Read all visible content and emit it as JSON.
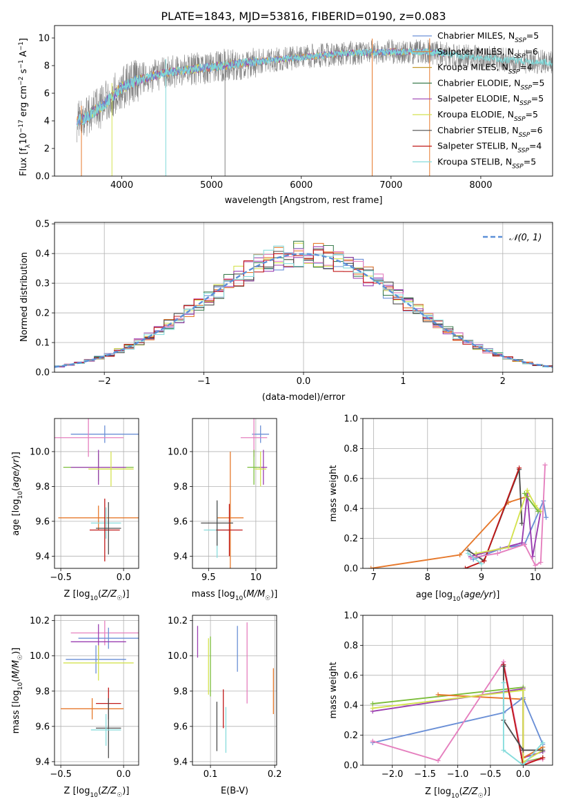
{
  "title": "PLATE=1843, MJD=53816, FIBERID=0190, z=0.083",
  "colors": {
    "Chabrier MILES": "#6a8fd6",
    "Salpeter MILES": "#e6782b",
    "Kroupa MILES": "#c49a2c",
    "Chabrier ELODIE": "#3c7d4f",
    "Salpeter ELODIE": "#9a3db0",
    "Kroupa ELODIE": "#d4e24f",
    "Chabrier STELIB": "#4d4d4d",
    "Salpeter STELIB": "#c01818",
    "Kroupa STELIB": "#86dcdc",
    "pink": "#e57fbe",
    "green": "#7bbd3a",
    "gaussian": "#5b8fd8",
    "spectrum_gray": "#808080",
    "spectrum_cyan": "#7fd9d9"
  },
  "chart_data": [
    {
      "type": "line",
      "id": "spectrum",
      "title": "PLATE=1843, MJD=53816, FIBERID=0190, z=0.083",
      "xlabel": "wavelength [Angstrom, rest frame]",
      "ylabel": "Flux [fλ10⁻¹⁷ erg cm⁻² s⁻¹ A⁻¹]",
      "xlim": [
        3250,
        8800
      ],
      "ylim": [
        0,
        10.9
      ],
      "xticks": [
        4000,
        5000,
        6000,
        7000,
        8000
      ],
      "yticks": [
        0,
        2,
        4,
        6,
        8,
        10
      ],
      "grid": false,
      "legend_position": "top-right",
      "legend": [
        "Chabrier MILES, N_SSP=5",
        "Salpeter MILES, N_SSP=6",
        "Kroupa MILES, N_SSP=4",
        "Chabrier ELODIE, N_SSP=5",
        "Salpeter ELODIE, N_SSP=5",
        "Kroupa ELODIE, N_SSP=5",
        "Chabrier STELIB, N_SSP=6",
        "Salpeter STELIB, N_SSP=4",
        "Kroupa STELIB, N_SSP=5"
      ],
      "continuum": {
        "x": [
          3500,
          3600,
          3800,
          4000,
          4200,
          4500,
          5000,
          5500,
          6000,
          6500,
          7000,
          7400,
          7800,
          8300,
          8800
        ],
        "y": [
          4.0,
          4.2,
          5.2,
          6.4,
          7.0,
          7.5,
          7.9,
          8.3,
          8.6,
          8.9,
          9.0,
          9.0,
          8.7,
          8.4,
          8.2
        ]
      },
      "drops": [
        {
          "x": 3550,
          "y": 0.0
        },
        {
          "x": 3890,
          "y": 0.0
        },
        {
          "x": 4490,
          "y": 0.0
        },
        {
          "x": 5150,
          "y": 0.0
        },
        {
          "x": 6790,
          "y": 0.0
        },
        {
          "x": 7430,
          "y": 0.0
        }
      ]
    },
    {
      "type": "line",
      "id": "residual-hist",
      "xlabel": "(data-model)/error",
      "ylabel": "Normed distribution",
      "xlim": [
        -2.5,
        2.5
      ],
      "ylim": [
        0,
        0.505
      ],
      "xticks": [
        -2,
        -1,
        0,
        1,
        2
      ],
      "yticks": [
        0.0,
        0.1,
        0.2,
        0.3,
        0.4,
        0.5
      ],
      "grid": true,
      "legend_position": "top-right",
      "legend": [
        "𝒩(0, 1)"
      ],
      "bin_width": 0.1
    },
    {
      "type": "scatter",
      "id": "age-vs-Z",
      "xlabel": "Z [log10(Z/Z☉)]",
      "ylabel": "age  [log10(age/yr)]",
      "xlim": [
        -0.55,
        0.12
      ],
      "ylim": [
        9.33,
        10.19
      ],
      "xticks": [
        -0.5,
        0.0
      ],
      "yticks": [
        9.4,
        9.6,
        9.8,
        10.0
      ],
      "grid": true,
      "points": [
        {
          "series": "Chabrier MILES",
          "x": -0.15,
          "y": 10.1,
          "xerr": 0.27,
          "yerr": 0.05
        },
        {
          "series": "pink",
          "x": -0.28,
          "y": 10.08,
          "xerr": 0.28,
          "yerr": 0.11
        },
        {
          "series": "green",
          "x": -0.2,
          "y": 9.91,
          "xerr": 0.28,
          "yerr": 0.08
        },
        {
          "series": "Salpeter ELODIE",
          "x": -0.2,
          "y": 9.91,
          "xerr": 0.22,
          "yerr": 0.1
        },
        {
          "series": "Kroupa ELODIE",
          "x": -0.1,
          "y": 9.9,
          "xerr": 0.18,
          "yerr": 0.1
        },
        {
          "series": "Salpeter MILES",
          "x": -0.2,
          "y": 9.62,
          "xerr": 0.32,
          "yerr": 0.07
        },
        {
          "series": "Kroupa STELIB",
          "x": -0.14,
          "y": 9.59,
          "xerr": 0.12,
          "yerr": 0.09
        },
        {
          "series": "Salpeter STELIB",
          "x": -0.15,
          "y": 9.55,
          "xerr": 0.12,
          "yerr": 0.18
        },
        {
          "series": "Chabrier STELIB",
          "x": -0.12,
          "y": 9.56,
          "xerr": 0.1,
          "yerr": 0.15
        }
      ]
    },
    {
      "type": "scatter",
      "id": "age-vs-mass",
      "xlabel": "mass [log10(M/M☉)]",
      "ylabel": "",
      "xlim": [
        9.33,
        10.22
      ],
      "ylim": [
        9.33,
        10.19
      ],
      "xticks": [
        9.5,
        10.0
      ],
      "yticks": [
        9.4,
        9.6,
        9.8,
        10.0
      ],
      "grid": true,
      "points": [
        {
          "series": "Chabrier MILES",
          "x": 10.05,
          "y": 10.1,
          "xerr": 0.09,
          "yerr": 0.05
        },
        {
          "series": "pink",
          "x": 9.98,
          "y": 10.08,
          "xerr": 0.14,
          "yerr": 0.11
        },
        {
          "series": "green",
          "x": 9.98,
          "y": 9.91,
          "xerr": 0.07,
          "yerr": 0.1
        },
        {
          "series": "Salpeter ELODIE",
          "x": 10.08,
          "y": 9.91,
          "xerr": 0.04,
          "yerr": 0.1
        },
        {
          "series": "Kroupa ELODIE",
          "x": 10.05,
          "y": 9.9,
          "xerr": 0.06,
          "yerr": 0.1
        },
        {
          "series": "Salpeter MILES",
          "x": 9.73,
          "y": 9.62,
          "xerr": 0.14,
          "yerr": 0.38
        },
        {
          "series": "Kroupa STELIB",
          "x": 9.59,
          "y": 9.55,
          "xerr": 0.14,
          "yerr": 0.16
        },
        {
          "series": "Salpeter STELIB",
          "x": 9.72,
          "y": 9.55,
          "xerr": 0.14,
          "yerr": 0.15
        },
        {
          "series": "Chabrier STELIB",
          "x": 9.59,
          "y": 9.59,
          "xerr": 0.17,
          "yerr": 0.13
        }
      ]
    },
    {
      "type": "line",
      "id": "weight-vs-age",
      "xlabel": "age  [log10(age/yr)]",
      "ylabel": "mass weight",
      "xlim": [
        6.8,
        10.32
      ],
      "ylim": [
        0,
        1.0
      ],
      "xticks": [
        7,
        8,
        9,
        10
      ],
      "yticks": [
        0.0,
        0.2,
        0.4,
        0.6,
        0.8,
        1.0
      ],
      "grid": true,
      "series": [
        {
          "name": "Salpeter MILES",
          "x": [
            6.95,
            8.6,
            9.5,
            9.85
          ],
          "y": [
            0.0,
            0.09,
            0.44,
            0.48
          ]
        },
        {
          "name": "Chabrier MILES",
          "x": [
            8.85,
            9.35,
            9.8,
            10.15,
            10.2
          ],
          "y": [
            0.06,
            0.13,
            0.16,
            0.45,
            0.34
          ]
        },
        {
          "name": "Chabrier STELIB",
          "x": [
            8.75,
            9.05,
            9.7,
            9.75
          ],
          "y": [
            0.12,
            0.05,
            0.66,
            0.3
          ]
        },
        {
          "name": "Salpeter STELIB",
          "x": [
            8.7,
            9.05,
            9.7
          ],
          "y": [
            0.0,
            0.05,
            0.67
          ]
        },
        {
          "name": "Salpeter ELODIE",
          "x": [
            8.8,
            9.75,
            9.85,
            9.95,
            10.1
          ],
          "y": [
            0.08,
            0.17,
            0.5,
            0.08,
            0.38
          ]
        },
        {
          "name": "Kroupa ELODIE",
          "x": [
            8.9,
            9.5,
            9.85,
            10.0,
            10.1
          ],
          "y": [
            0.1,
            0.14,
            0.52,
            0.42,
            0.38
          ]
        },
        {
          "name": "pink",
          "x": [
            8.8,
            9.3,
            9.8,
            10.0,
            10.1,
            10.18
          ],
          "y": [
            0.07,
            0.1,
            0.16,
            0.02,
            0.04,
            0.69
          ]
        },
        {
          "name": "Kroupa STELIB",
          "x": [
            8.75,
            9.0
          ],
          "y": [
            0.1,
            0.03
          ]
        },
        {
          "name": "green",
          "x": [
            9.8,
            10.05
          ],
          "y": [
            0.5,
            0.38
          ]
        }
      ]
    },
    {
      "type": "scatter",
      "id": "mass-vs-Z",
      "xlabel": "Z [log10(Z/Z☉)]",
      "ylabel": "mass [log10(M/M☉)]",
      "xlim": [
        -0.55,
        0.12
      ],
      "ylim": [
        9.38,
        10.23
      ],
      "xticks": [
        -0.5,
        0.0
      ],
      "yticks": [
        9.4,
        9.6,
        9.8,
        10.0,
        10.2
      ],
      "grid": true,
      "points": [
        {
          "series": "pink",
          "x": -0.15,
          "y": 10.13,
          "xerr": 0.27,
          "yerr": 0.07
        },
        {
          "series": "Chabrier MILES",
          "x": -0.12,
          "y": 10.1,
          "xerr": 0.24,
          "yerr": 0.06
        },
        {
          "series": "Salpeter ELODIE",
          "x": -0.2,
          "y": 10.08,
          "xerr": 0.22,
          "yerr": 0.1
        },
        {
          "series": "Chabrier MILES",
          "x": -0.22,
          "y": 9.98,
          "xerr": 0.24,
          "yerr": 0.08
        },
        {
          "series": "Kroupa ELODIE",
          "x": -0.2,
          "y": 9.96,
          "xerr": 0.28,
          "yerr": 0.1
        },
        {
          "series": "Salpeter STELIB",
          "x": -0.12,
          "y": 9.73,
          "xerr": 0.1,
          "yerr": 0.09
        },
        {
          "series": "Salpeter MILES",
          "x": -0.25,
          "y": 9.7,
          "xerr": 0.25,
          "yerr": 0.06
        },
        {
          "series": "Chabrier STELIB",
          "x": -0.12,
          "y": 9.59,
          "xerr": 0.1,
          "yerr": 0.17
        },
        {
          "series": "Kroupa STELIB",
          "x": -0.14,
          "y": 9.58,
          "xerr": 0.12,
          "yerr": 0.09
        }
      ]
    },
    {
      "type": "scatter",
      "id": "mass-vs-ebv",
      "xlabel": "E(B-V)",
      "ylabel": "",
      "xlim": [
        0.072,
        0.203
      ],
      "ylim": [
        9.38,
        10.23
      ],
      "xticks": [
        0.1,
        0.2
      ],
      "yticks": [
        9.4,
        9.6,
        9.8,
        10.0,
        10.2
      ],
      "grid": true,
      "points": [
        {
          "series": "Salpeter ELODIE",
          "x": 0.08,
          "y": 10.08,
          "yerr": 0.09
        },
        {
          "series": "Kroupa ELODIE",
          "x": 0.097,
          "y": 9.94,
          "yerr": 0.16
        },
        {
          "series": "green",
          "x": 0.1,
          "y": 9.94,
          "yerr": 0.17
        },
        {
          "series": "Chabrier STELIB",
          "x": 0.11,
          "y": 9.6,
          "yerr": 0.14
        },
        {
          "series": "Salpeter STELIB",
          "x": 0.12,
          "y": 9.7,
          "yerr": 0.11
        },
        {
          "series": "Kroupa STELIB",
          "x": 0.124,
          "y": 9.58,
          "yerr": 0.13
        },
        {
          "series": "Chabrier MILES",
          "x": 0.142,
          "y": 10.04,
          "yerr": 0.13
        },
        {
          "series": "pink",
          "x": 0.157,
          "y": 9.96,
          "yerr": 0.23
        },
        {
          "series": "Salpeter MILES",
          "x": 0.198,
          "y": 9.8,
          "yerr": 0.13
        }
      ]
    },
    {
      "type": "line",
      "id": "weight-vs-Z",
      "xlabel": "Z [log10(Z/Z☉)]",
      "ylabel": "mass weight",
      "xlim": [
        -2.45,
        0.45
      ],
      "ylim": [
        0,
        1.0
      ],
      "xticks": [
        -2.0,
        -1.5,
        -1.0,
        -0.5,
        0.0
      ],
      "yticks": [
        0.0,
        0.2,
        0.4,
        0.6,
        0.8,
        1.0
      ],
      "grid": true,
      "series": [
        {
          "name": "green",
          "x": [
            -2.3,
            0.0,
            0.0,
            0.3
          ],
          "y": [
            0.41,
            0.52,
            0.02,
            0.05
          ]
        },
        {
          "name": "Salpeter ELODIE",
          "x": [
            -2.3,
            0.0,
            0.0,
            0.3
          ],
          "y": [
            0.36,
            0.51,
            0.05,
            0.09
          ]
        },
        {
          "name": "Salpeter MILES",
          "x": [
            -1.3,
            0.0,
            0.0,
            0.3
          ],
          "y": [
            0.47,
            0.44,
            0.05,
            0.12
          ]
        },
        {
          "name": "Chabrier MILES",
          "x": [
            -2.3,
            -0.3,
            0.0,
            0.3
          ],
          "y": [
            0.15,
            0.35,
            0.45,
            0.14
          ]
        },
        {
          "name": "pink",
          "x": [
            -2.3,
            -1.3,
            -0.3,
            0.0,
            0.3
          ],
          "y": [
            0.16,
            0.03,
            0.69,
            0.02,
            0.04
          ]
        },
        {
          "name": "Kroupa ELODIE",
          "x": [
            -2.3,
            0.0,
            0.0,
            0.3
          ],
          "y": [
            0.38,
            0.5,
            0.02,
            0.1
          ]
        },
        {
          "name": "Salpeter STELIB",
          "x": [
            -0.3,
            0.0,
            0.3
          ],
          "y": [
            0.67,
            0.0,
            0.05
          ]
        },
        {
          "name": "Chabrier STELIB",
          "x": [
            -0.3,
            -0.3,
            0.0,
            0.3
          ],
          "y": [
            0.66,
            0.3,
            0.1,
            0.1
          ]
        },
        {
          "name": "Kroupa STELIB",
          "x": [
            -0.3,
            -0.3,
            0.0,
            0.3
          ],
          "y": [
            0.55,
            0.1,
            0.0,
            0.15
          ]
        }
      ]
    }
  ]
}
